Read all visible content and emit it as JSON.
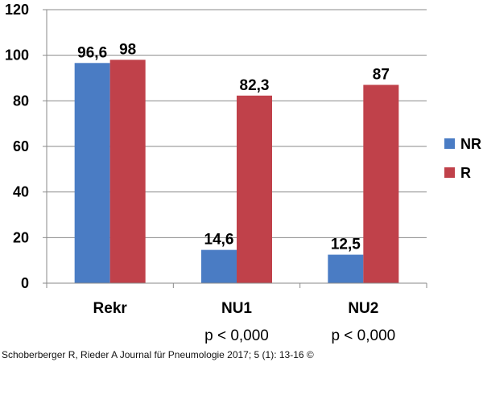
{
  "chart_data": {
    "type": "bar",
    "categories": [
      "Rekr",
      "NU1",
      "NU2"
    ],
    "category_sublabels": [
      "",
      "p < 0,000",
      "p < 0,000"
    ],
    "series": [
      {
        "name": "NR",
        "color": "#4a7cc4",
        "values": [
          96.6,
          14.6,
          12.5
        ],
        "labels": [
          "96,6",
          "14,6",
          "12,5"
        ]
      },
      {
        "name": "R",
        "color": "#c0414a",
        "values": [
          98,
          82.3,
          87
        ],
        "labels": [
          "98",
          "82,3",
          "87"
        ]
      }
    ],
    "ylim": [
      0,
      120
    ],
    "yticks": [
      0,
      20,
      40,
      60,
      80,
      100,
      120
    ],
    "grid": true,
    "legend_position": "right"
  },
  "credit": "Schoberberger R, Rieder A Journal für Pneumologie 2017; 5 (1): 13-16 ©"
}
